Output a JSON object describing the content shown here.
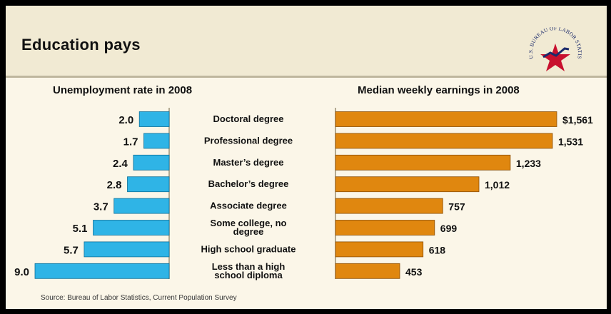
{
  "title": "Education pays",
  "logo": {
    "icon": "bls-star-seal-icon",
    "text": "U.S. BUREAU OF LABOR STATISTICS"
  },
  "left_title": "Unemployment rate in 2008",
  "right_title": "Median weekly earnings in 2008",
  "source": "Source: Bureau of Labor Statistics, Current Population Survey",
  "colors": {
    "unemployment_bar": "#2fb4e6",
    "earnings_bar": "#e0870f",
    "background": "#fbf6e8"
  },
  "chart_data": {
    "type": "bar",
    "categories": [
      [
        "Doctoral degree"
      ],
      [
        "Professional degree"
      ],
      [
        "Master’s degree"
      ],
      [
        "Bachelor’s degree"
      ],
      [
        "Associate degree"
      ],
      [
        "Some college, no",
        "degree"
      ],
      [
        "High school graduate"
      ],
      [
        "Less than a high",
        "school diploma"
      ]
    ],
    "series": [
      {
        "name": "Unemployment rate in 2008",
        "values": [
          2.0,
          1.7,
          2.4,
          2.8,
          3.7,
          5.1,
          5.7,
          9.0
        ],
        "labels": [
          "2.0",
          "1.7",
          "2.4",
          "2.8",
          "3.7",
          "5.1",
          "5.7",
          "9.0"
        ]
      },
      {
        "name": "Median weekly earnings in 2008",
        "values": [
          1561,
          1531,
          1233,
          1012,
          757,
          699,
          618,
          453
        ],
        "labels": [
          "$1,561",
          "1,531",
          "1,233",
          "1,012",
          "757",
          "699",
          "618",
          "453"
        ]
      }
    ]
  }
}
